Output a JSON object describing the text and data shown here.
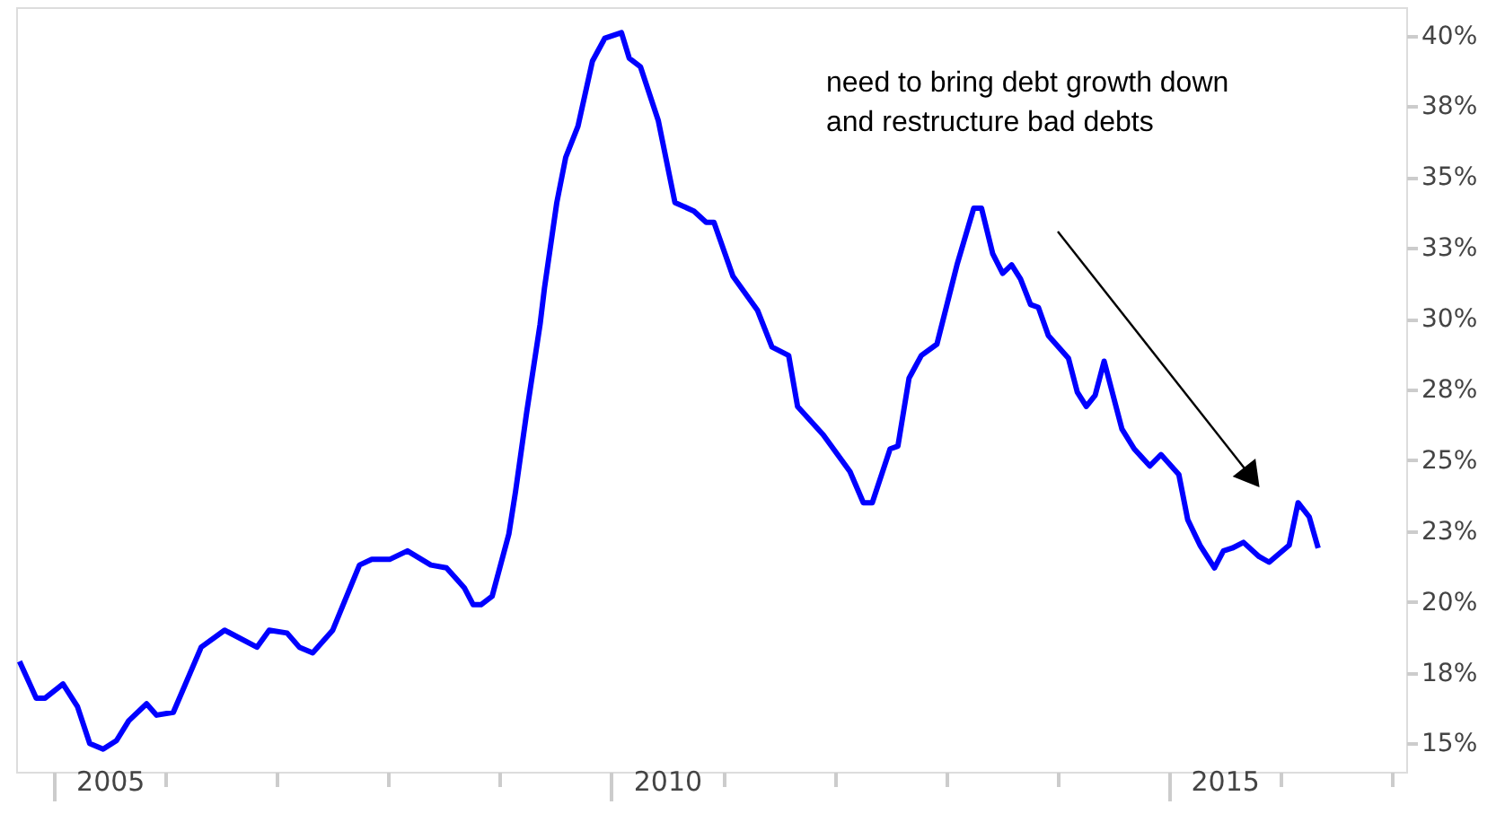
{
  "chart_data": {
    "type": "line",
    "grid": false,
    "legend": false,
    "marker": "none",
    "line_style": "solid",
    "xlim": [
      2004.66,
      2017.13
    ],
    "xticks": [
      {
        "value": 2005,
        "label": null
      },
      {
        "value": 2005.5,
        "label": "2005"
      },
      {
        "value": 2006,
        "label": null
      },
      {
        "value": 2007,
        "label": null
      },
      {
        "value": 2008,
        "label": null
      },
      {
        "value": 2009,
        "label": null
      },
      {
        "value": 2010,
        "label": null
      },
      {
        "value": 2010.5,
        "label": "2010"
      },
      {
        "value": 2011,
        "label": null
      },
      {
        "value": 2012,
        "label": null
      },
      {
        "value": 2013,
        "label": null
      },
      {
        "value": 2014,
        "label": null
      },
      {
        "value": 2015,
        "label": null
      },
      {
        "value": 2015.5,
        "label": "2015"
      },
      {
        "value": 2016,
        "label": null
      },
      {
        "value": 2017,
        "label": null
      }
    ],
    "ylim": [
      14,
      41
    ],
    "yticks": [
      {
        "value": 15,
        "label": "15%"
      },
      {
        "value": 17.5,
        "label": "18%"
      },
      {
        "value": 20,
        "label": "20%"
      },
      {
        "value": 22.5,
        "label": "23%"
      },
      {
        "value": 25,
        "label": "25%"
      },
      {
        "value": 27.5,
        "label": "28%"
      },
      {
        "value": 30,
        "label": "30%"
      },
      {
        "value": 32.5,
        "label": "33%"
      },
      {
        "value": 35,
        "label": "35%"
      },
      {
        "value": 37.5,
        "label": "38%"
      },
      {
        "value": 40,
        "label": "40%"
      }
    ],
    "annotations": [
      "need to bring debt growth down\nand restructure bad debts"
    ],
    "series": [
      {
        "color": "#0000ff",
        "x": [
          2004.69,
          2004.84,
          2004.92,
          2005.08,
          2005.21,
          2005.32,
          2005.44,
          2005.56,
          2005.67,
          2005.83,
          2005.92,
          2006.07,
          2006.32,
          2006.53,
          2006.82,
          2006.93,
          2007.09,
          2007.2,
          2007.32,
          2007.5,
          2007.74,
          2007.85,
          2008.01,
          2008.17,
          2008.38,
          2008.52,
          2008.68,
          2008.76,
          2008.83,
          2008.93,
          2009.08,
          2009.14,
          2009.24,
          2009.36,
          2009.4,
          2009.51,
          2009.59,
          2009.7,
          2009.83,
          2009.94,
          2010.09,
          2010.16,
          2010.26,
          2010.42,
          2010.57,
          2010.74,
          2010.85,
          2010.92,
          2011.09,
          2011.31,
          2011.44,
          2011.59,
          2011.67,
          2011.9,
          2012.14,
          2012.26,
          2012.34,
          2012.5,
          2012.57,
          2012.67,
          2012.78,
          2012.92,
          2013.1,
          2013.25,
          2013.32,
          2013.42,
          2013.51,
          2013.59,
          2013.67,
          2013.76,
          2013.83,
          2013.92,
          2014.1,
          2014.18,
          2014.26,
          2014.34,
          2014.42,
          2014.58,
          2014.69,
          2014.83,
          2014.93,
          2015.09,
          2015.17,
          2015.28,
          2015.41,
          2015.49,
          2015.57,
          2015.67,
          2015.81,
          2015.9,
          2016.08,
          2016.16,
          2016.26,
          2016.34
        ],
        "values": [
          17.9,
          16.6,
          16.6,
          17.1,
          16.3,
          15.0,
          14.8,
          15.1,
          15.8,
          16.4,
          16.0,
          16.1,
          18.4,
          19.0,
          18.4,
          19.0,
          18.9,
          18.4,
          18.2,
          19.0,
          21.3,
          21.5,
          21.5,
          21.8,
          21.3,
          21.2,
          20.5,
          19.9,
          19.9,
          20.2,
          22.4,
          23.9,
          26.7,
          29.8,
          31.1,
          34.1,
          35.7,
          36.8,
          39.1,
          39.9,
          40.1,
          39.2,
          38.9,
          37.0,
          34.1,
          33.8,
          33.4,
          33.4,
          31.5,
          30.3,
          29.0,
          28.7,
          26.9,
          25.9,
          24.6,
          23.5,
          23.5,
          25.4,
          25.5,
          27.9,
          28.7,
          29.1,
          31.9,
          33.9,
          33.9,
          32.3,
          31.6,
          31.9,
          31.4,
          30.5,
          30.4,
          29.4,
          28.6,
          27.4,
          26.9,
          27.3,
          28.5,
          26.1,
          25.4,
          24.8,
          25.2,
          24.5,
          22.9,
          22.0,
          21.2,
          21.8,
          21.9,
          22.1,
          21.6,
          21.4,
          22.0,
          23.5,
          23.0,
          21.9
        ]
      }
    ]
  }
}
